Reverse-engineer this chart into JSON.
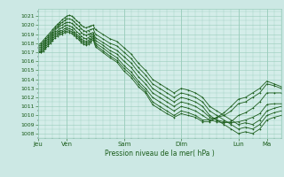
{
  "title": "",
  "xlabel": "Pression niveau de la mer( hPa )",
  "bg_color": "#cce8e4",
  "plot_bg_color": "#d4ede9",
  "grid_color": "#99ccbb",
  "line_color": "#1a5c1a",
  "ylim": [
    1007.5,
    1021.8
  ],
  "yticks": [
    1008,
    1009,
    1010,
    1011,
    1012,
    1013,
    1014,
    1015,
    1016,
    1017,
    1018,
    1019,
    1020,
    1021
  ],
  "day_labels": [
    "Jeu",
    "Ven",
    "Sam",
    "Dim",
    "Lun",
    "Ma"
  ],
  "day_hours": [
    0,
    24,
    72,
    120,
    168,
    192
  ],
  "total_hours": 204,
  "figsize": [
    3.2,
    2.0
  ],
  "dpi": 100,
  "series": [
    {
      "hours": [
        0,
        2,
        4,
        6,
        8,
        10,
        12,
        14,
        16,
        18,
        20,
        22,
        24,
        26,
        28,
        30,
        32,
        34,
        36,
        38,
        40,
        42,
        44,
        46,
        48,
        54,
        60,
        66,
        72,
        78,
        84,
        90,
        96,
        102,
        108,
        114,
        120,
        126,
        132,
        138,
        144,
        150,
        156,
        162,
        168,
        174,
        180,
        186,
        192,
        198,
        204
      ],
      "values": [
        1017.8,
        1018.0,
        1018.3,
        1018.6,
        1018.9,
        1019.2,
        1019.5,
        1019.8,
        1020.1,
        1020.3,
        1020.6,
        1020.8,
        1021.0,
        1021.1,
        1021.0,
        1020.8,
        1020.5,
        1020.3,
        1020.0,
        1019.8,
        1019.7,
        1019.8,
        1019.9,
        1020.0,
        1019.5,
        1019.0,
        1018.5,
        1018.2,
        1017.5,
        1016.8,
        1015.8,
        1015.0,
        1014.0,
        1013.5,
        1013.0,
        1012.5,
        1013.0,
        1012.8,
        1012.5,
        1012.0,
        1011.0,
        1010.5,
        1010.0,
        1009.5,
        1009.0,
        1009.2,
        1009.0,
        1009.5,
        1010.5,
        1010.8,
        1011.0
      ]
    },
    {
      "hours": [
        0,
        2,
        4,
        6,
        8,
        10,
        12,
        14,
        16,
        18,
        20,
        22,
        24,
        26,
        28,
        30,
        32,
        34,
        36,
        38,
        40,
        42,
        44,
        46,
        48,
        54,
        60,
        66,
        72,
        78,
        84,
        90,
        96,
        102,
        108,
        114,
        120,
        126,
        132,
        138,
        144,
        150,
        156,
        162,
        168,
        174,
        180,
        186,
        192,
        198,
        204
      ],
      "values": [
        1017.6,
        1017.8,
        1018.1,
        1018.4,
        1018.7,
        1019.0,
        1019.3,
        1019.6,
        1019.9,
        1020.1,
        1020.3,
        1020.5,
        1020.7,
        1020.7,
        1020.6,
        1020.4,
        1020.1,
        1019.9,
        1019.6,
        1019.4,
        1019.3,
        1019.4,
        1019.5,
        1019.6,
        1019.0,
        1018.5,
        1018.0,
        1017.7,
        1017.0,
        1016.3,
        1015.3,
        1014.5,
        1013.5,
        1013.0,
        1012.5,
        1012.0,
        1012.5,
        1012.3,
        1012.0,
        1011.5,
        1010.5,
        1010.0,
        1009.5,
        1009.0,
        1008.5,
        1008.7,
        1008.5,
        1009.0,
        1010.0,
        1010.3,
        1010.5
      ]
    },
    {
      "hours": [
        0,
        2,
        4,
        6,
        8,
        10,
        12,
        14,
        16,
        18,
        20,
        22,
        24,
        26,
        28,
        30,
        32,
        34,
        36,
        38,
        40,
        42,
        44,
        46,
        48,
        54,
        60,
        66,
        72,
        78,
        84,
        90,
        96,
        102,
        108,
        114,
        120,
        126,
        132,
        138,
        144,
        150,
        156,
        162,
        168,
        174,
        180,
        186,
        192,
        198,
        204
      ],
      "values": [
        1017.4,
        1017.6,
        1017.9,
        1018.2,
        1018.5,
        1018.8,
        1019.1,
        1019.4,
        1019.7,
        1019.9,
        1020.0,
        1020.2,
        1020.3,
        1020.3,
        1020.2,
        1020.0,
        1019.7,
        1019.5,
        1019.2,
        1019.0,
        1018.9,
        1019.0,
        1019.1,
        1019.2,
        1018.6,
        1018.1,
        1017.6,
        1017.2,
        1016.5,
        1015.8,
        1014.8,
        1014.0,
        1013.0,
        1012.5,
        1012.0,
        1011.5,
        1012.0,
        1011.8,
        1011.5,
        1011.0,
        1010.0,
        1009.5,
        1009.0,
        1008.5,
        1008.0,
        1008.2,
        1008.0,
        1008.5,
        1009.5,
        1009.8,
        1010.0
      ]
    },
    {
      "hours": [
        0,
        2,
        4,
        6,
        8,
        10,
        12,
        14,
        16,
        18,
        20,
        22,
        24,
        26,
        28,
        30,
        32,
        34,
        36,
        38,
        40,
        42,
        44,
        46,
        48,
        54,
        60,
        66,
        72,
        78,
        84,
        90,
        96,
        102,
        108,
        114,
        120,
        126,
        132,
        138,
        144,
        150,
        156,
        162,
        168,
        174,
        180,
        186,
        192,
        198,
        204
      ],
      "values": [
        1017.2,
        1017.4,
        1017.7,
        1018.0,
        1018.3,
        1018.6,
        1018.9,
        1019.2,
        1019.4,
        1019.6,
        1019.7,
        1019.9,
        1020.0,
        1019.9,
        1019.8,
        1019.6,
        1019.3,
        1019.1,
        1018.8,
        1018.6,
        1018.5,
        1018.6,
        1018.8,
        1019.0,
        1018.3,
        1017.8,
        1017.2,
        1016.8,
        1016.0,
        1015.3,
        1014.3,
        1013.5,
        1012.5,
        1012.0,
        1011.5,
        1011.0,
        1011.5,
        1011.3,
        1011.0,
        1010.5,
        1009.8,
        1009.5,
        1009.3,
        1009.2,
        1009.3,
        1009.5,
        1009.8,
        1010.2,
        1011.2,
        1011.3,
        1011.3
      ]
    },
    {
      "hours": [
        0,
        2,
        4,
        6,
        8,
        10,
        12,
        14,
        16,
        18,
        20,
        22,
        24,
        26,
        28,
        30,
        32,
        34,
        36,
        38,
        40,
        42,
        44,
        46,
        48,
        54,
        60,
        66,
        72,
        78,
        84,
        90,
        96,
        102,
        108,
        114,
        120,
        126,
        132,
        138,
        144,
        150,
        156,
        162,
        168,
        174,
        180,
        186,
        192,
        198,
        204
      ],
      "values": [
        1017.0,
        1017.2,
        1017.5,
        1017.8,
        1018.1,
        1018.4,
        1018.7,
        1019.0,
        1019.2,
        1019.4,
        1019.4,
        1019.6,
        1019.7,
        1019.6,
        1019.5,
        1019.3,
        1019.0,
        1018.8,
        1018.5,
        1018.3,
        1018.2,
        1018.3,
        1018.5,
        1018.8,
        1018.0,
        1017.5,
        1016.9,
        1016.4,
        1015.5,
        1014.8,
        1013.8,
        1013.0,
        1012.0,
        1011.5,
        1011.0,
        1010.5,
        1011.0,
        1010.8,
        1010.5,
        1010.0,
        1009.5,
        1009.3,
        1009.2,
        1009.3,
        1010.0,
        1010.3,
        1010.8,
        1011.5,
        1012.5,
        1012.5,
        1012.5
      ]
    },
    {
      "hours": [
        0,
        2,
        4,
        6,
        8,
        10,
        12,
        14,
        16,
        18,
        20,
        22,
        24,
        26,
        28,
        30,
        32,
        34,
        36,
        38,
        40,
        42,
        44,
        46,
        48,
        54,
        60,
        66,
        72,
        78,
        84,
        90,
        96,
        102,
        108,
        114,
        120,
        126,
        132,
        138,
        144,
        150,
        156,
        162,
        168,
        174,
        180,
        186,
        192,
        198,
        204
      ],
      "values": [
        1017.0,
        1017.0,
        1017.3,
        1017.6,
        1017.9,
        1018.2,
        1018.5,
        1018.8,
        1019.0,
        1019.2,
        1019.2,
        1019.4,
        1019.5,
        1019.4,
        1019.3,
        1019.1,
        1018.8,
        1018.6,
        1018.3,
        1018.1,
        1018.0,
        1018.1,
        1018.3,
        1018.6,
        1017.8,
        1017.2,
        1016.6,
        1016.1,
        1015.2,
        1014.5,
        1013.5,
        1012.7,
        1011.5,
        1011.0,
        1010.5,
        1010.0,
        1010.5,
        1010.3,
        1010.0,
        1009.5,
        1009.5,
        1009.8,
        1010.0,
        1010.5,
        1011.3,
        1011.5,
        1012.0,
        1012.5,
        1013.5,
        1013.3,
        1013.0
      ]
    },
    {
      "hours": [
        0,
        2,
        4,
        6,
        8,
        10,
        12,
        14,
        16,
        18,
        20,
        22,
        24,
        26,
        28,
        30,
        32,
        34,
        36,
        38,
        40,
        42,
        44,
        46,
        48,
        54,
        60,
        66,
        72,
        78,
        84,
        90,
        96,
        102,
        108,
        114,
        120,
        126,
        132,
        138,
        144,
        150,
        156,
        162,
        168,
        174,
        180,
        186,
        192,
        198,
        204
      ],
      "values": [
        1017.0,
        1017.0,
        1017.1,
        1017.4,
        1017.7,
        1018.0,
        1018.3,
        1018.6,
        1018.8,
        1019.0,
        1019.0,
        1019.2,
        1019.3,
        1019.2,
        1019.1,
        1018.9,
        1018.6,
        1018.4,
        1018.1,
        1017.9,
        1017.8,
        1017.9,
        1018.1,
        1018.4,
        1017.6,
        1017.0,
        1016.4,
        1015.9,
        1014.9,
        1014.2,
        1013.2,
        1012.5,
        1011.2,
        1010.7,
        1010.2,
        1009.8,
        1010.2,
        1010.0,
        1009.8,
        1009.3,
        1009.3,
        1009.8,
        1010.3,
        1011.0,
        1011.8,
        1012.0,
        1012.5,
        1013.0,
        1013.8,
        1013.5,
        1013.2
      ]
    }
  ]
}
